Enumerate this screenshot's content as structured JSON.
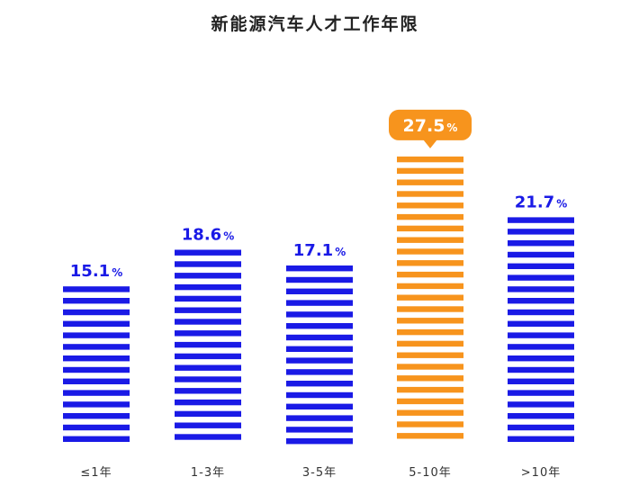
{
  "chart_data": {
    "type": "bar",
    "title": "新能源汽车人才工作年限",
    "categories": [
      "≤1年",
      "1-3年",
      "3-5年",
      "5-10年",
      ">10年"
    ],
    "values": [
      15.1,
      18.6,
      17.1,
      27.5,
      21.7
    ],
    "unit": "%",
    "highlight_index": 3,
    "ylim": [
      0,
      30
    ],
    "grid": false,
    "legend": "none",
    "colors": {
      "default": "#1a1ae6",
      "highlight": "#f7941d"
    }
  }
}
